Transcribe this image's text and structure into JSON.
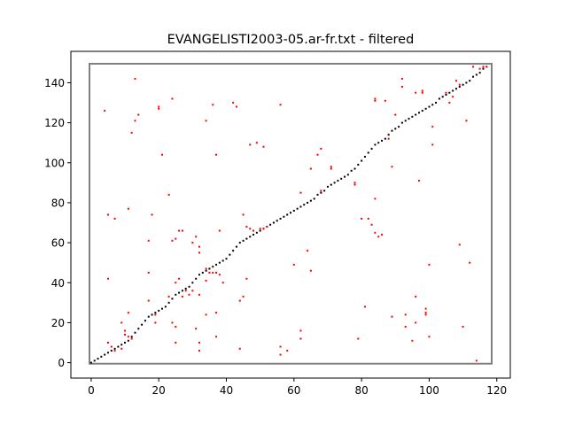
{
  "chart_data": {
    "type": "scatter",
    "title": "EVANGELISTI2003-05.ar-fr.txt - filtered",
    "xlabel": "",
    "ylabel": "",
    "xlim": [
      -6,
      124
    ],
    "ylim": [
      -7.7,
      155.7
    ],
    "xticks": [
      0,
      20,
      40,
      60,
      80,
      100,
      120
    ],
    "yticks": [
      0,
      20,
      40,
      60,
      80,
      100,
      120,
      140
    ],
    "grid": false,
    "frame_rect": {
      "x": [
        -0.5,
        118.5
      ],
      "y": [
        -0.5,
        149.5
      ],
      "color": "#808080"
    },
    "series": [
      {
        "color": "#000000",
        "points": [
          [
            0,
            0
          ],
          [
            1,
            1
          ],
          [
            2,
            2
          ],
          [
            3,
            3
          ],
          [
            4,
            4
          ],
          [
            5,
            5
          ],
          [
            6,
            6
          ],
          [
            7,
            7
          ],
          [
            8,
            8
          ],
          [
            9,
            9
          ],
          [
            10,
            10
          ],
          [
            11,
            11
          ],
          [
            12,
            13
          ],
          [
            13,
            15
          ],
          [
            14,
            17
          ],
          [
            15,
            19
          ],
          [
            16,
            21
          ],
          [
            17,
            23
          ],
          [
            18,
            24
          ],
          [
            19,
            25
          ],
          [
            20,
            26
          ],
          [
            21,
            27
          ],
          [
            22,
            28
          ],
          [
            23,
            30
          ],
          [
            24,
            32
          ],
          [
            25,
            34
          ],
          [
            26,
            35
          ],
          [
            27,
            36
          ],
          [
            28,
            37
          ],
          [
            29,
            38
          ],
          [
            30,
            40
          ],
          [
            31,
            42
          ],
          [
            32,
            44
          ],
          [
            33,
            45
          ],
          [
            34,
            46
          ],
          [
            35,
            47
          ],
          [
            36,
            48
          ],
          [
            37,
            49
          ],
          [
            38,
            50
          ],
          [
            39,
            51
          ],
          [
            40,
            52
          ],
          [
            41,
            54
          ],
          [
            42,
            56
          ],
          [
            43,
            58
          ],
          [
            44,
            60
          ],
          [
            45,
            61
          ],
          [
            46,
            62
          ],
          [
            47,
            63
          ],
          [
            48,
            64
          ],
          [
            49,
            65
          ],
          [
            50,
            66
          ],
          [
            51,
            67
          ],
          [
            52,
            68
          ],
          [
            53,
            69
          ],
          [
            54,
            70
          ],
          [
            55,
            71
          ],
          [
            56,
            72
          ],
          [
            57,
            73
          ],
          [
            58,
            74
          ],
          [
            59,
            75
          ],
          [
            60,
            76
          ],
          [
            61,
            77
          ],
          [
            62,
            78
          ],
          [
            63,
            79
          ],
          [
            64,
            80
          ],
          [
            65,
            81
          ],
          [
            66,
            82
          ],
          [
            67,
            84
          ],
          [
            68,
            85
          ],
          [
            69,
            86
          ],
          [
            70,
            88
          ],
          [
            71,
            89
          ],
          [
            72,
            90
          ],
          [
            73,
            91
          ],
          [
            74,
            92
          ],
          [
            75,
            93
          ],
          [
            76,
            94
          ],
          [
            77,
            96
          ],
          [
            78,
            97
          ],
          [
            79,
            99
          ],
          [
            80,
            101
          ],
          [
            81,
            103
          ],
          [
            82,
            105
          ],
          [
            83,
            107
          ],
          [
            84,
            109
          ],
          [
            85,
            110
          ],
          [
            86,
            111
          ],
          [
            87,
            112
          ],
          [
            88,
            114
          ],
          [
            89,
            116
          ],
          [
            90,
            117
          ],
          [
            91,
            118
          ],
          [
            92,
            120
          ],
          [
            93,
            121
          ],
          [
            94,
            122
          ],
          [
            95,
            123
          ],
          [
            96,
            124
          ],
          [
            97,
            125
          ],
          [
            98,
            126
          ],
          [
            99,
            127
          ],
          [
            100,
            128
          ],
          [
            101,
            129
          ],
          [
            102,
            130
          ],
          [
            103,
            132
          ],
          [
            104,
            133
          ],
          [
            105,
            134
          ],
          [
            106,
            135
          ],
          [
            107,
            136
          ],
          [
            108,
            137
          ],
          [
            109,
            138
          ],
          [
            110,
            139
          ],
          [
            111,
            140
          ],
          [
            112,
            141
          ],
          [
            113,
            143
          ],
          [
            114,
            144
          ],
          [
            115,
            145
          ],
          [
            116,
            147
          ],
          [
            117,
            148
          ]
        ]
      },
      {
        "color": "#ff0000",
        "points": [
          [
            4,
            126
          ],
          [
            13,
            142
          ],
          [
            13,
            121
          ],
          [
            14,
            124
          ],
          [
            12,
            115
          ],
          [
            20,
            127
          ],
          [
            20,
            128
          ],
          [
            21,
            104
          ],
          [
            24,
            132
          ],
          [
            23,
            84
          ],
          [
            11,
            77
          ],
          [
            5,
            74
          ],
          [
            7,
            72
          ],
          [
            18,
            74
          ],
          [
            17,
            61
          ],
          [
            24,
            61
          ],
          [
            25,
            62
          ],
          [
            27,
            66
          ],
          [
            26,
            66
          ],
          [
            30,
            60
          ],
          [
            31,
            63
          ],
          [
            32,
            58
          ],
          [
            32,
            55
          ],
          [
            34,
            121
          ],
          [
            36,
            129
          ],
          [
            37,
            104
          ],
          [
            38,
            66
          ],
          [
            42,
            130
          ],
          [
            43,
            128
          ],
          [
            47,
            109
          ],
          [
            49,
            110
          ],
          [
            51,
            108
          ],
          [
            56,
            129
          ],
          [
            45,
            74
          ],
          [
            46,
            68
          ],
          [
            47,
            67
          ],
          [
            48,
            66
          ],
          [
            50,
            67
          ],
          [
            51,
            67
          ],
          [
            52,
            68
          ],
          [
            62,
            85
          ],
          [
            64,
            56
          ],
          [
            65,
            46
          ],
          [
            60,
            49
          ],
          [
            65,
            97
          ],
          [
            67,
            104
          ],
          [
            68,
            107
          ],
          [
            68,
            86
          ],
          [
            71,
            98
          ],
          [
            71,
            97
          ],
          [
            78,
            90
          ],
          [
            78,
            89
          ],
          [
            80,
            72
          ],
          [
            82,
            72
          ],
          [
            83,
            69
          ],
          [
            84,
            65
          ],
          [
            85,
            63
          ],
          [
            86,
            64
          ],
          [
            84,
            82
          ],
          [
            84,
            131
          ],
          [
            84,
            132
          ],
          [
            87,
            131
          ],
          [
            88,
            112
          ],
          [
            89,
            98
          ],
          [
            90,
            124
          ],
          [
            92,
            142
          ],
          [
            92,
            138
          ],
          [
            96,
            135
          ],
          [
            97,
            91
          ],
          [
            98,
            136
          ],
          [
            98,
            135
          ],
          [
            101,
            118
          ],
          [
            101,
            109
          ],
          [
            105,
            135
          ],
          [
            106,
            130
          ],
          [
            107,
            133
          ],
          [
            108,
            141
          ],
          [
            109,
            139
          ],
          [
            109,
            59
          ],
          [
            111,
            121
          ],
          [
            112,
            50
          ],
          [
            5,
            42
          ],
          [
            17,
            45
          ],
          [
            17,
            31
          ],
          [
            19,
            24
          ],
          [
            23,
            33
          ],
          [
            25,
            40
          ],
          [
            26,
            42
          ],
          [
            27,
            33
          ],
          [
            28,
            36
          ],
          [
            29,
            34
          ],
          [
            30,
            36
          ],
          [
            32,
            34
          ],
          [
            34,
            47
          ],
          [
            34,
            41
          ],
          [
            35,
            45
          ],
          [
            36,
            45
          ],
          [
            37,
            45
          ],
          [
            38,
            44
          ],
          [
            45,
            33
          ],
          [
            44,
            31
          ],
          [
            46,
            42
          ],
          [
            39,
            40
          ],
          [
            5,
            10
          ],
          [
            6,
            8
          ],
          [
            7,
            6
          ],
          [
            9,
            20
          ],
          [
            9,
            7
          ],
          [
            10,
            16
          ],
          [
            10,
            14
          ],
          [
            11,
            25
          ],
          [
            11,
            13
          ],
          [
            12,
            12
          ],
          [
            19,
            20
          ],
          [
            24,
            20
          ],
          [
            25,
            18
          ],
          [
            25,
            10
          ],
          [
            32,
            10
          ],
          [
            32,
            6
          ],
          [
            31,
            17
          ],
          [
            34,
            24
          ],
          [
            37,
            25
          ],
          [
            37,
            13
          ],
          [
            44,
            7
          ],
          [
            56,
            8
          ],
          [
            56,
            4
          ],
          [
            58,
            6
          ],
          [
            62,
            16
          ],
          [
            62,
            12
          ],
          [
            81,
            28
          ],
          [
            79,
            12
          ],
          [
            89,
            23
          ],
          [
            93,
            24
          ],
          [
            93,
            18
          ],
          [
            95,
            11
          ],
          [
            96,
            33
          ],
          [
            96,
            20
          ],
          [
            99,
            27
          ],
          [
            99,
            25
          ],
          [
            99,
            24
          ],
          [
            100,
            13
          ],
          [
            100,
            49
          ],
          [
            110,
            18
          ],
          [
            114,
            1
          ],
          [
            113,
            148
          ],
          [
            115,
            147
          ],
          [
            116,
            148
          ],
          [
            117,
            148
          ]
        ]
      }
    ]
  }
}
